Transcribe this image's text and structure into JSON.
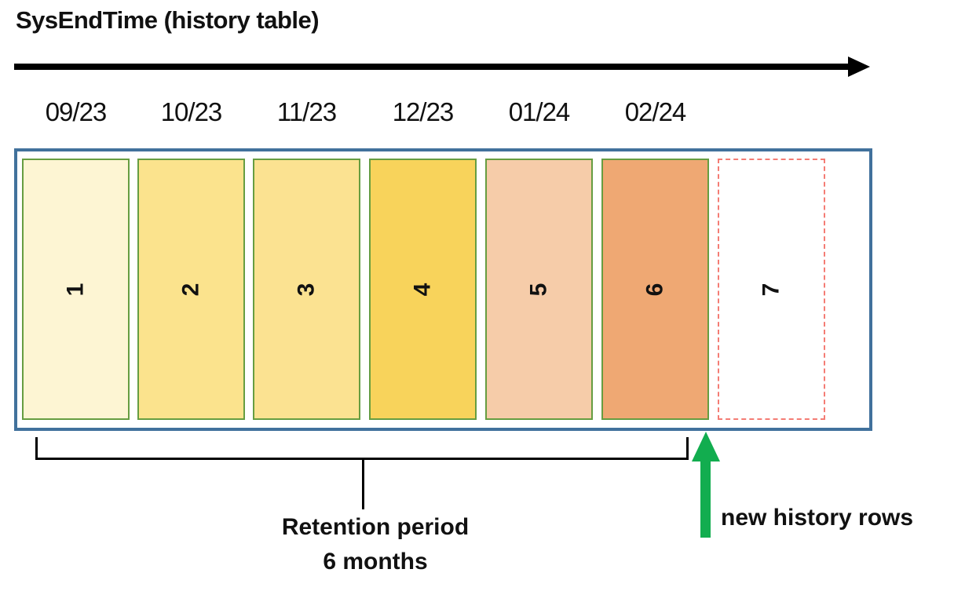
{
  "title": "SysEndTime (history table)",
  "months": [
    "09/23",
    "10/23",
    "11/23",
    "12/23",
    "01/24",
    "02/24"
  ],
  "partitions": [
    {
      "label": "1",
      "fill": "#FDF5D3",
      "border": "#669D41",
      "dashed": false
    },
    {
      "label": "2",
      "fill": "#FBE38D",
      "border": "#669D41",
      "dashed": false
    },
    {
      "label": "3",
      "fill": "#FBE291",
      "border": "#669D41",
      "dashed": false
    },
    {
      "label": "4",
      "fill": "#F8D35B",
      "border": "#669D41",
      "dashed": false
    },
    {
      "label": "5",
      "fill": "#F6CCA9",
      "border": "#669D41",
      "dashed": false
    },
    {
      "label": "6",
      "fill": "#EFA873",
      "border": "#669D41",
      "dashed": false
    },
    {
      "label": "7",
      "fill": "#FFFFFF",
      "border": "#F47C74",
      "dashed": true
    }
  ],
  "retention": {
    "line1": "Retention period",
    "line2": "6 months"
  },
  "annotation": {
    "label": "new history rows"
  },
  "colors": {
    "box_border": "#41719C",
    "black": "#000000",
    "green": "#12AD4F"
  }
}
